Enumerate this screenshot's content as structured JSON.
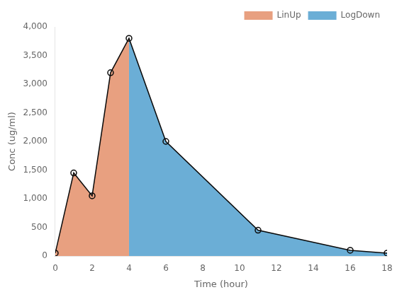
{
  "chart_data": {
    "type": "area",
    "xlabel": "Time (hour)",
    "ylabel": "Conc (ug/ml)",
    "xlim": [
      0,
      18
    ],
    "ylim": [
      0,
      4000
    ],
    "xticks": [
      0,
      2,
      4,
      6,
      8,
      10,
      12,
      14,
      16,
      18
    ],
    "yticks": [
      0,
      500,
      1000,
      1500,
      2000,
      2500,
      3000,
      3500,
      4000
    ],
    "grid": false,
    "legend": "upper right",
    "series": [
      {
        "name": "LinUp",
        "type": "area",
        "color": "#E8A080",
        "x": [
          0,
          1,
          2,
          3,
          4
        ],
        "values": [
          50,
          1450,
          1050,
          3200,
          3800
        ]
      },
      {
        "name": "LogDown",
        "type": "area",
        "color": "#6BAED6",
        "x": [
          4,
          6,
          11,
          16,
          18
        ],
        "values": [
          3800,
          2000,
          450,
          100,
          50
        ]
      },
      {
        "type": "line",
        "color": "#0a0a0a",
        "marker": "o",
        "x": [
          0,
          1,
          2,
          3,
          4,
          6,
          11,
          16,
          18
        ],
        "values": [
          50,
          1450,
          1050,
          3200,
          3800,
          2000,
          450,
          100,
          50
        ]
      }
    ]
  }
}
